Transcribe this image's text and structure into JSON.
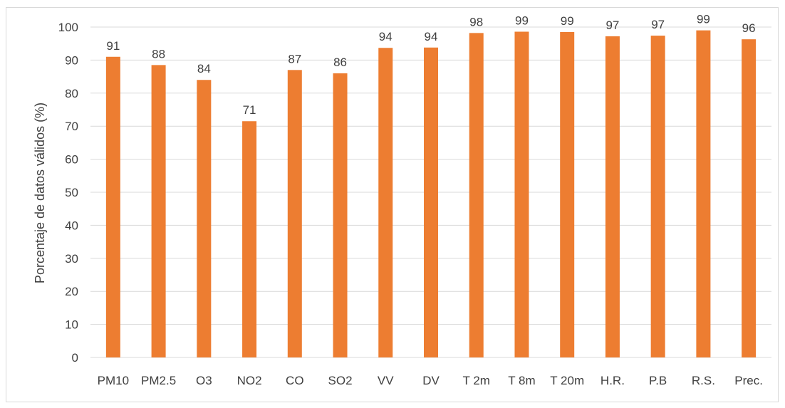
{
  "chart_data": {
    "type": "bar",
    "ylabel": "Porcentaje de datos  válidos (%)",
    "ylim": [
      0,
      100
    ],
    "ytick_step": 10,
    "grid": true,
    "bar_color": "#ED7D31",
    "categories": [
      "PM10",
      "PM2.5",
      "O3",
      "NO2",
      "CO",
      "SO2",
      "VV",
      "DV",
      "T 2m",
      "T 8m",
      "T 20m",
      "H.R.",
      "P.B",
      "R.S.",
      "Prec."
    ],
    "values": [
      91,
      88.5,
      84,
      71.5,
      87,
      86,
      93.7,
      93.8,
      98.2,
      98.6,
      98.5,
      97.2,
      97.4,
      99,
      96.3
    ],
    "data_labels": [
      "91",
      "88",
      "84",
      "71",
      "87",
      "86",
      "94",
      "94",
      "98",
      "99",
      "99",
      "97",
      "97",
      "99",
      "96"
    ]
  }
}
